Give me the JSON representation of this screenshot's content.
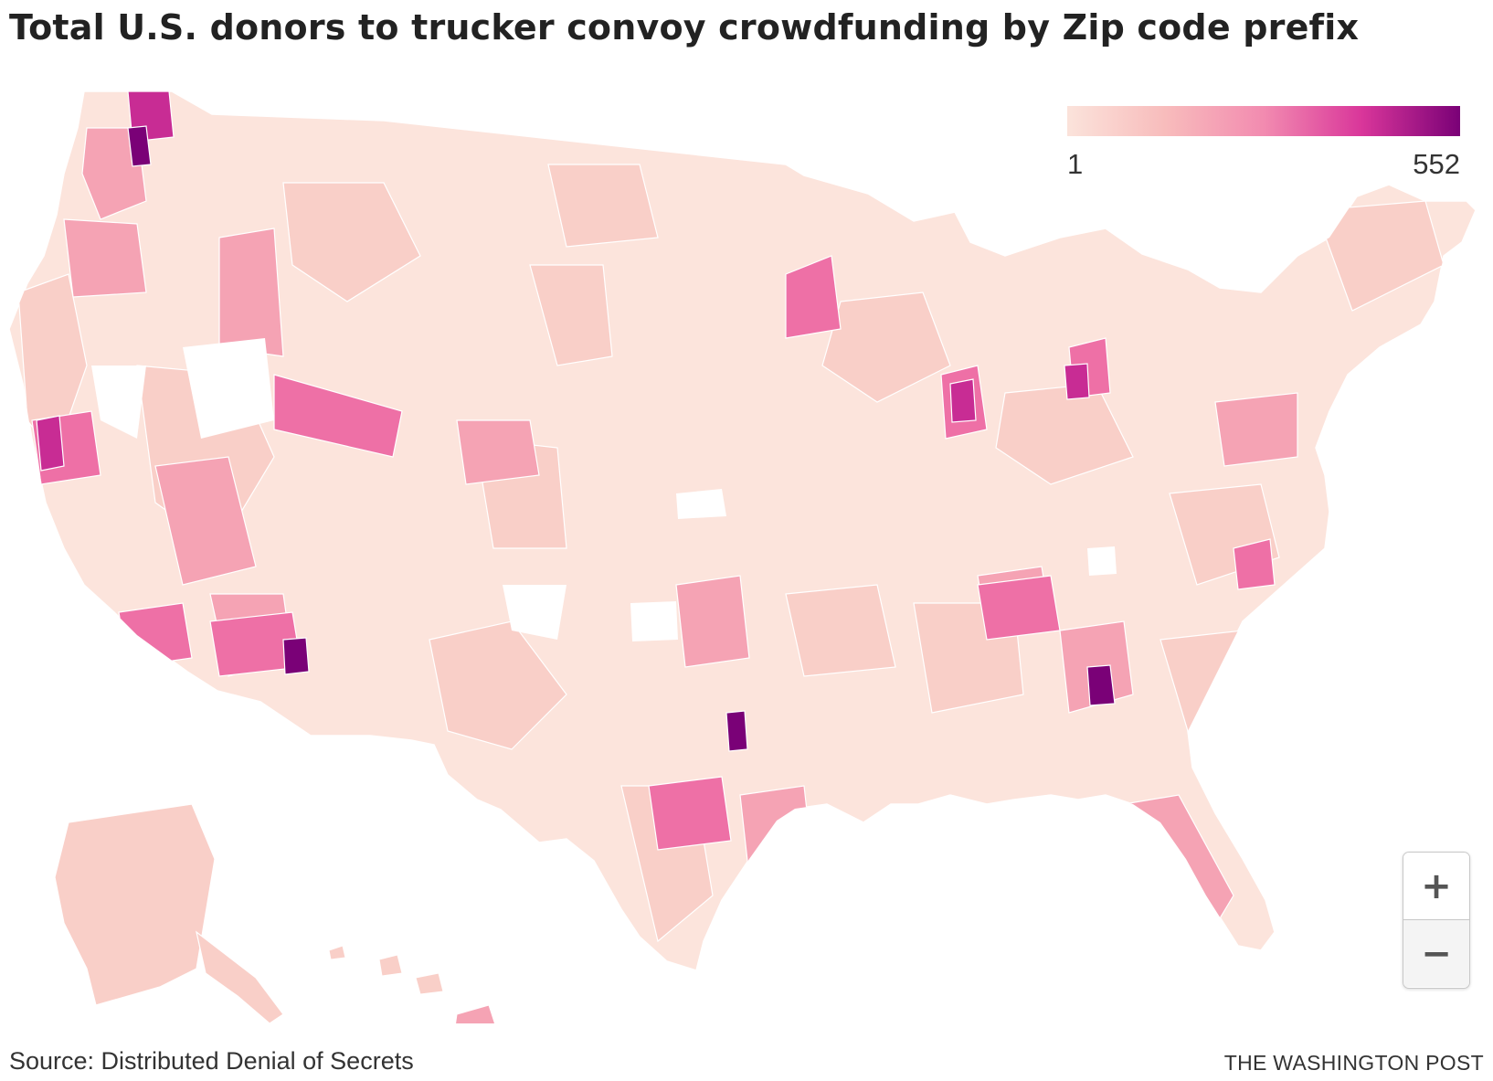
{
  "chart": {
    "title": "Total U.S. donors to trucker convoy crowdfunding by Zip code prefix"
  },
  "legend": {
    "min_label": "1",
    "max_label": "552",
    "colors": [
      "#fbe3db",
      "#f8bcbc",
      "#f28bb0",
      "#d9369a",
      "#7a0177"
    ]
  },
  "colors": {
    "land_base": "#fce4dc",
    "light": "#f9cfc8",
    "medium": "#f5a3b4",
    "strong": "#ee70a6",
    "deep": "#c82c94",
    "darkest": "#7a0177",
    "boundary": "#ffffff"
  },
  "zoom": {
    "in_symbol": "+",
    "out_symbol": "−"
  },
  "footer": {
    "source": "Source: Distributed Denial of Secrets",
    "credit": "THE WASHINGTON POST"
  }
}
